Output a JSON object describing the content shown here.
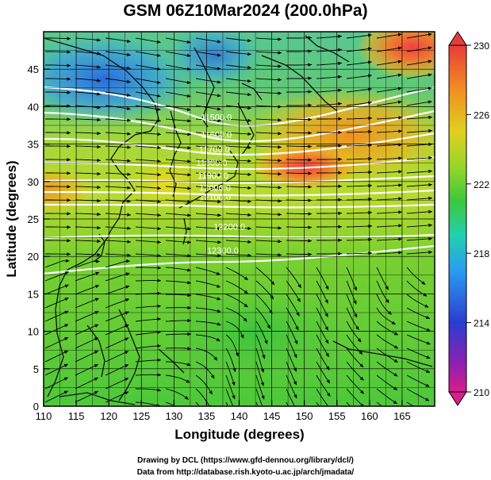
{
  "title": "GSM 06Z10Mar2024 (200.0hPa)",
  "x_axis": {
    "label": "Longitude (degrees)",
    "ticks": [
      "110",
      "115",
      "120",
      "125",
      "130",
      "135",
      "140",
      "145",
      "150",
      "155",
      "160",
      "165"
    ],
    "range": [
      110,
      170
    ]
  },
  "y_axis": {
    "label": "Latitude  (degrees)",
    "ticks": [
      "0",
      "5",
      "10",
      "15",
      "20",
      "25",
      "30",
      "35",
      "40",
      "45"
    ],
    "range": [
      0,
      50
    ]
  },
  "colorbar": {
    "labels": [
      "230",
      "226",
      "222",
      "218",
      "214",
      "210"
    ],
    "range": [
      210,
      230
    ],
    "colors": [
      "#d81e8c",
      "#2a3dd0",
      "#2a9cf0",
      "#22d0b0",
      "#3cc83c",
      "#96d628",
      "#e0d020",
      "#f09020",
      "#e83c3c"
    ]
  },
  "contour_labels": [
    {
      "text": "11500.0",
      "lon": 136.5,
      "lat": 38.6
    },
    {
      "text": "11600.0",
      "lon": 136.5,
      "lat": 36.3
    },
    {
      "text": "11700.0",
      "lon": 136.2,
      "lat": 34.3
    },
    {
      "text": "11800.0",
      "lon": 135.8,
      "lat": 32.5
    },
    {
      "text": "11900.0",
      "lon": 136.0,
      "lat": 30.8
    },
    {
      "text": "12000.0",
      "lon": 136.3,
      "lat": 29.2
    },
    {
      "text": "12100.0",
      "lon": 136.3,
      "lat": 27.9
    },
    {
      "text": "12200.0",
      "lon": 138.5,
      "lat": 24.0
    },
    {
      "text": "12300.0",
      "lon": 137.5,
      "lat": 20.8
    }
  ],
  "credits": [
    "Drawing by DCL (https://www.gfd-dennou.org/library/dcl/)",
    "Data from http://database.rish.kyoto-u.ac.jp/arch/jmadata/"
  ]
}
